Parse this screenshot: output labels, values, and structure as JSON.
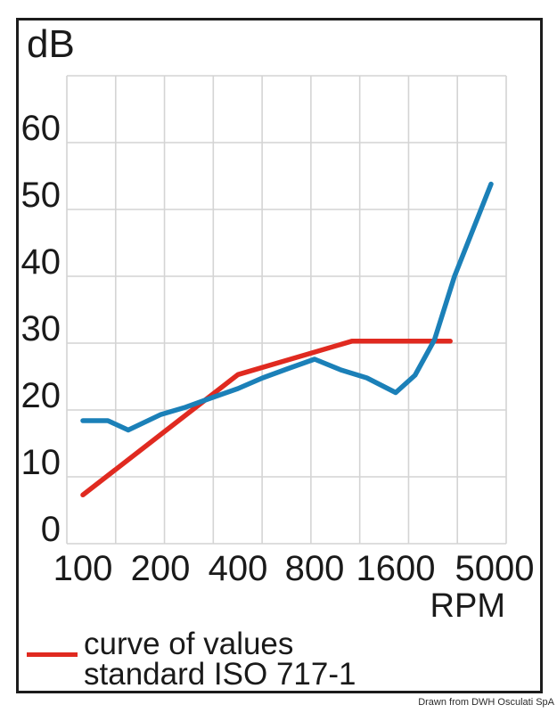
{
  "chart_data": {
    "type": "line",
    "title": "",
    "ylabel": "dB",
    "xlabel": "RPM",
    "x_scale": "log",
    "xlim": [
      100,
      5000
    ],
    "ylim": [
      0,
      70
    ],
    "grid": true,
    "x_ticks": [
      100,
      200,
      400,
      800,
      1600,
      5000
    ],
    "x_tick_labels": [
      "100",
      "200",
      "400",
      "800",
      "1600",
      "5000"
    ],
    "y_ticks": [
      0,
      10,
      20,
      30,
      40,
      50,
      60
    ],
    "y_tick_labels": [
      "0",
      "10",
      "20",
      "30",
      "40",
      "50",
      "60"
    ],
    "series": [
      {
        "id": "iso-reference-curve",
        "label": "curve of values standard ISO 717-1",
        "color": "#e02a20",
        "points": [
          [
            100,
            7.3
          ],
          [
            400,
            25.3
          ],
          [
            1100,
            30.3
          ],
          [
            3000,
            30.3
          ]
        ]
      },
      {
        "id": "blue-curve",
        "label": "",
        "color": "#1b80b8",
        "points": [
          [
            100,
            18.4
          ],
          [
            125,
            18.4
          ],
          [
            150,
            17.0
          ],
          [
            200,
            19.3
          ],
          [
            250,
            20.4
          ],
          [
            315,
            21.8
          ],
          [
            400,
            23.2
          ],
          [
            500,
            24.8
          ],
          [
            630,
            26.2
          ],
          [
            800,
            27.6
          ],
          [
            1000,
            26.0
          ],
          [
            1250,
            24.8
          ],
          [
            1600,
            22.6
          ],
          [
            2000,
            25.2
          ],
          [
            2500,
            30.5
          ],
          [
            3150,
            40.0
          ],
          [
            4800,
            53.8
          ]
        ]
      }
    ],
    "legend_position": "bottom-left"
  },
  "legend": {
    "line1": "curve of values",
    "line2": "standard ISO 717-1",
    "swatch_color": "#e02a20"
  },
  "credit": "Drawn from DWH Osculati SpA",
  "colors": {
    "frame": "#1c1c1c",
    "grid": "#d4d4d4",
    "text": "#1a1a1a",
    "red_curve": "#e02a20",
    "blue_curve": "#1b80b8"
  }
}
